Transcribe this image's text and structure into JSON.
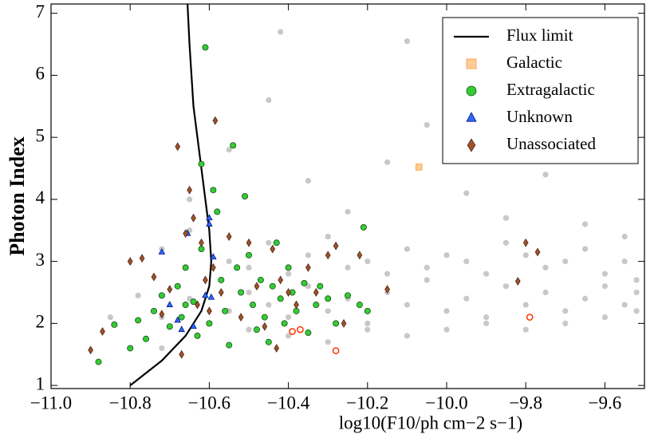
{
  "chart_data": {
    "type": "scatter",
    "xlabel": "log10(F10/ph cm−2 s−1)",
    "ylabel": "Photon Index",
    "xlim": [
      -11.0,
      -9.5
    ],
    "ylim": [
      0.95,
      7.15
    ],
    "xticks": [
      {
        "value": -11.0,
        "label": "−11.0"
      },
      {
        "value": -10.8,
        "label": "−10.8"
      },
      {
        "value": -10.6,
        "label": "−10.6"
      },
      {
        "value": -10.4,
        "label": "−10.4"
      },
      {
        "value": -10.2,
        "label": "−10.2"
      },
      {
        "value": -10.0,
        "label": "−10.0"
      },
      {
        "value": -9.8,
        "label": "−9.8"
      },
      {
        "value": -9.6,
        "label": "−9.6"
      }
    ],
    "yticks": [
      1,
      2,
      3,
      4,
      5,
      6,
      7
    ],
    "legend": "upper right",
    "series": [
      {
        "color": "#c8c8c8",
        "marker": "circle",
        "x": [
          -10.72,
          -10.65,
          -10.55,
          -10.5,
          -10.45,
          -10.4,
          -10.35,
          -10.3,
          -10.25,
          -10.2,
          -10.15,
          -10.1,
          -10.05,
          -10.0,
          -9.95,
          -9.9,
          -9.85,
          -9.8,
          -9.75,
          -9.7,
          -9.65,
          -9.6,
          -9.55,
          -9.52,
          -10.72,
          -10.65,
          -10.55,
          -10.5,
          -10.45,
          -10.4,
          -10.35,
          -10.3,
          -10.25,
          -10.2,
          -10.15,
          -10.1,
          -10.05,
          -10.0,
          -9.95,
          -9.9,
          -9.85,
          -9.8,
          -9.75,
          -9.7,
          -9.65,
          -9.6,
          -9.55,
          -9.52,
          -10.72,
          -10.65,
          -10.55,
          -10.5,
          -10.45,
          -10.4,
          -10.35,
          -10.3,
          -10.25,
          -10.2,
          -10.15,
          -10.1,
          -10.05,
          -10.0,
          -9.95,
          -9.9,
          -9.85,
          -9.8,
          -9.75,
          -9.7,
          -9.65,
          -9.6,
          -9.55,
          -9.52,
          -10.42,
          -10.1,
          -10.78,
          -10.85
        ],
        "values": [
          2.1,
          2.4,
          2.2,
          2.5,
          2.3,
          2.1,
          2.6,
          2.2,
          2.4,
          2.0,
          2.5,
          2.3,
          2.7,
          2.2,
          2.4,
          2.1,
          2.6,
          2.3,
          2.5,
          2.2,
          2.4,
          2.6,
          2.3,
          2.5,
          3.2,
          3.5,
          3.0,
          2.9,
          3.3,
          2.8,
          3.1,
          3.4,
          2.9,
          3.0,
          2.8,
          3.2,
          2.9,
          3.1,
          3.0,
          2.8,
          3.3,
          3.1,
          2.9,
          3.0,
          3.2,
          2.8,
          3.0,
          2.7,
          1.6,
          4.0,
          4.8,
          1.9,
          5.6,
          1.8,
          4.3,
          1.7,
          3.8,
          1.9,
          4.6,
          1.8,
          5.2,
          1.9,
          4.1,
          2.0,
          3.7,
          1.9,
          4.4,
          2.0,
          3.6,
          2.1,
          3.4,
          2.2,
          6.7,
          6.55,
          2.45,
          2.1
        ]
      },
      {
        "color": "#ff3300",
        "marker": "open-circle",
        "x": [
          -10.39,
          -10.28,
          -9.79,
          -10.37
        ],
        "values": [
          1.87,
          1.56,
          2.1,
          1.9
        ]
      },
      {
        "name": "Flux limit",
        "color": "#000000",
        "marker": "line",
        "x": [
          -10.8,
          -10.72,
          -10.66,
          -10.62,
          -10.6,
          -10.595,
          -10.6,
          -10.61,
          -10.62,
          -10.63,
          -10.64,
          -10.645,
          -10.65,
          -10.655
        ],
        "values": [
          1.0,
          1.4,
          1.8,
          2.2,
          2.6,
          3.0,
          3.5,
          4.0,
          4.5,
          5.0,
          5.5,
          6.0,
          6.5,
          7.15
        ]
      },
      {
        "name": "Galactic",
        "color": "#ffcc99",
        "edge": "#ff9933",
        "marker": "square",
        "x": [
          -10.07
        ],
        "values": [
          4.52
        ]
      },
      {
        "name": "Extragalactic",
        "color": "#33cc33",
        "edge": "#1a4d1a",
        "marker": "circle",
        "x": [
          -10.88,
          -10.84,
          -10.8,
          -10.78,
          -10.76,
          -10.74,
          -10.72,
          -10.7,
          -10.68,
          -10.67,
          -10.66,
          -10.64,
          -10.63,
          -10.62,
          -10.61,
          -10.6,
          -10.59,
          -10.58,
          -10.57,
          -10.56,
          -10.55,
          -10.54,
          -10.53,
          -10.52,
          -10.51,
          -10.5,
          -10.49,
          -10.48,
          -10.47,
          -10.46,
          -10.45,
          -10.44,
          -10.43,
          -10.42,
          -10.41,
          -10.4,
          -10.39,
          -10.38,
          -10.36,
          -10.35,
          -10.33,
          -10.32,
          -10.3,
          -10.28,
          -10.25,
          -10.22,
          -10.21,
          -10.2,
          -10.62,
          -10.66
        ],
        "values": [
          1.38,
          1.98,
          1.6,
          2.05,
          1.75,
          2.2,
          2.45,
          1.95,
          2.6,
          2.1,
          2.9,
          2.35,
          1.8,
          3.2,
          6.45,
          2.0,
          4.15,
          3.8,
          2.7,
          2.2,
          1.65,
          4.87,
          2.9,
          2.5,
          4.05,
          3.1,
          2.3,
          1.9,
          2.7,
          2.1,
          1.7,
          2.6,
          3.3,
          2.4,
          2.0,
          2.9,
          2.5,
          2.2,
          2.65,
          1.85,
          2.3,
          2.6,
          2.4,
          2.0,
          2.45,
          2.3,
          3.55,
          2.2,
          4.57,
          2.3
        ]
      },
      {
        "name": "Unknown",
        "color": "#3366ff",
        "edge": "#001a80",
        "marker": "triangle",
        "x": [
          -10.72,
          -10.7,
          -10.68,
          -10.67,
          -10.655,
          -10.64,
          -10.6,
          -10.59,
          -10.595,
          -10.61,
          -10.6
        ],
        "values": [
          3.15,
          2.3,
          2.05,
          1.9,
          3.45,
          1.95,
          3.7,
          3.07,
          2.42,
          2.45,
          3.6
        ]
      },
      {
        "name": "Unassociated",
        "color": "#a0522d",
        "edge": "#4d2613",
        "marker": "diamond",
        "x": [
          -10.9,
          -10.87,
          -10.8,
          -10.77,
          -10.74,
          -10.72,
          -10.7,
          -10.68,
          -10.67,
          -10.66,
          -10.65,
          -10.64,
          -10.63,
          -10.62,
          -10.61,
          -10.6,
          -10.59,
          -10.585,
          -10.57,
          -10.55,
          -10.52,
          -10.5,
          -10.48,
          -10.46,
          -10.44,
          -10.42,
          -10.4,
          -10.38,
          -10.35,
          -10.33,
          -10.3,
          -10.28,
          -10.26,
          -10.22,
          -10.15,
          -9.8,
          -9.82,
          -9.77,
          -10.43
        ],
        "values": [
          1.57,
          1.87,
          3.0,
          3.05,
          2.75,
          2.15,
          2.55,
          4.85,
          1.5,
          3.45,
          4.15,
          3.7,
          2.3,
          3.3,
          2.7,
          2.2,
          2.9,
          5.27,
          2.5,
          3.4,
          2.1,
          3.3,
          2.6,
          1.95,
          3.2,
          2.7,
          2.5,
          2.3,
          2.9,
          2.5,
          3.1,
          3.25,
          2.0,
          3.1,
          2.55,
          3.3,
          2.68,
          3.15,
          1.6
        ]
      }
    ]
  }
}
